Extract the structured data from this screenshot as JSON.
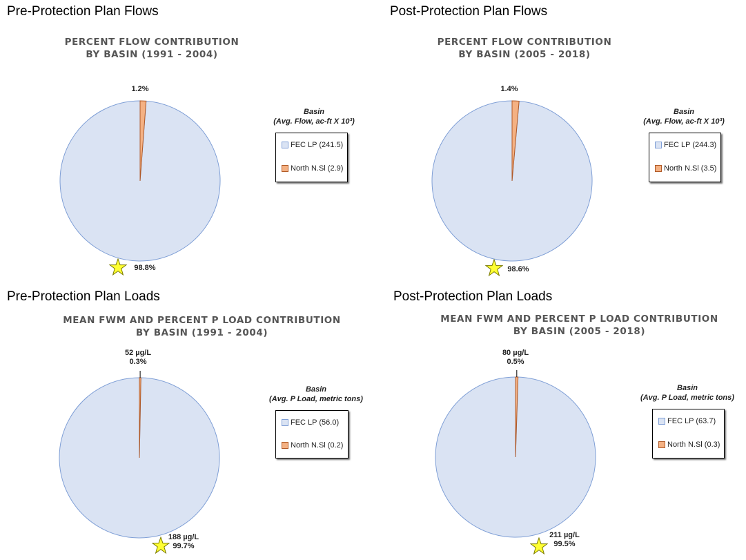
{
  "panels": [
    {
      "heading": "Pre-Protection Plan Flows",
      "chart_title": [
        "PERCENT FLOW CONTRIBUTION",
        "BY BASIN (1991 - 2004)"
      ],
      "legend": {
        "title": [
          "Basin",
          "(Avg. Flow, ac-ft X 10³)"
        ],
        "entries": [
          "FEC LP (241.5)",
          "North N.Sl (2.9)"
        ]
      },
      "labels": {
        "small": [
          "1.2%"
        ],
        "large": [
          "98.8%"
        ]
      }
    },
    {
      "heading": "Post-Protection Plan Flows",
      "chart_title": [
        "PERCENT FLOW CONTRIBUTION",
        "BY BASIN (2005 - 2018)"
      ],
      "legend": {
        "title": [
          "Basin",
          "(Avg. Flow, ac-ft X 10³)"
        ],
        "entries": [
          "FEC LP (244.3)",
          "North N.Sl (3.5)"
        ]
      },
      "labels": {
        "small": [
          "1.4%"
        ],
        "large": [
          "98.6%"
        ]
      }
    },
    {
      "heading": "Pre-Protection Plan Loads",
      "chart_title": [
        "MEAN FWM AND PERCENT P LOAD CONTRIBUTION",
        "BY BASIN (1991 - 2004)"
      ],
      "legend": {
        "title": [
          "Basin",
          "(Avg. P Load, metric tons)"
        ],
        "entries": [
          "FEC LP (56.0)",
          "North N.Sl (0.2)"
        ]
      },
      "labels": {
        "small": [
          "52  µg/L",
          "0.3%"
        ],
        "large": [
          "188  µg/L",
          "99.7%"
        ]
      }
    },
    {
      "heading": "Post-Protection Plan Loads",
      "chart_title": [
        "MEAN FWM AND PERCENT P LOAD CONTRIBUTION",
        "BY BASIN (2005 - 2018)"
      ],
      "legend": {
        "title": [
          "Basin",
          "(Avg. P Load, metric tons)"
        ],
        "entries": [
          "FEC LP (63.7)",
          "North N.Sl (0.3)"
        ]
      },
      "labels": {
        "small": [
          "80  µg/L",
          "0.5%"
        ],
        "large": [
          "211  µg/L",
          "99.5%"
        ]
      }
    }
  ],
  "colors": {
    "fec_fill": "#dae3f3",
    "fec_stroke": "#7f9fd6",
    "north_fill": "#f4b183",
    "north_stroke": "#b05a28",
    "star_fill": "#ffff33",
    "star_stroke": "#7a7a00"
  },
  "chart_data": [
    {
      "type": "pie",
      "title": "PERCENT FLOW CONTRIBUTION BY BASIN (1991 - 2004)",
      "categories": [
        "FEC LP (241.5)",
        "North N.Sl (2.9)"
      ],
      "values": [
        98.8,
        1.2
      ],
      "legend_title": "Basin (Avg. Flow, ac-ft X 10³)",
      "legend_placement": "right"
    },
    {
      "type": "pie",
      "title": "PERCENT FLOW CONTRIBUTION BY BASIN (2005 - 2018)",
      "categories": [
        "FEC LP (244.3)",
        "North N.Sl (3.5)"
      ],
      "values": [
        98.6,
        1.4
      ],
      "legend_title": "Basin (Avg. Flow, ac-ft X 10³)",
      "legend_placement": "right"
    },
    {
      "type": "pie",
      "title": "MEAN FWM AND PERCENT P LOAD CONTRIBUTION BY BASIN (1991 - 2004)",
      "categories": [
        "FEC LP (56.0)",
        "North N.Sl (0.2)"
      ],
      "values": [
        99.7,
        0.3
      ],
      "legend_title": "Basin (Avg. P Load, metric tons)",
      "legend_placement": "right"
    },
    {
      "type": "pie",
      "title": "MEAN FWM AND PERCENT P LOAD CONTRIBUTION BY BASIN (2005 - 2018)",
      "categories": [
        "FEC LP (63.7)",
        "North N.Sl (0.3)"
      ],
      "values": [
        99.5,
        0.5
      ],
      "legend_title": "Basin (Avg. P Load, metric tons)",
      "legend_placement": "right"
    }
  ]
}
